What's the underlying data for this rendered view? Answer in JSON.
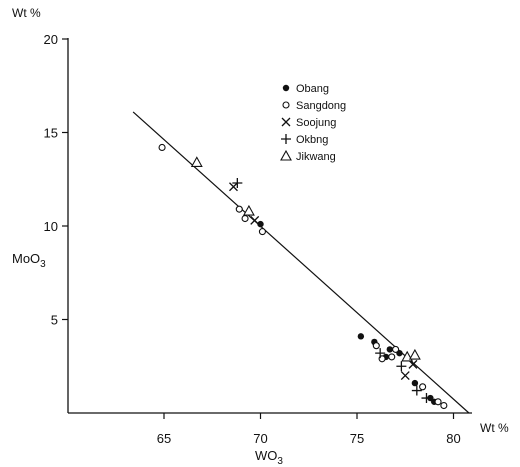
{
  "chart_data": {
    "type": "scatter",
    "title": "",
    "xlabel": "WO₃",
    "ylabel": "MoO₃",
    "x_unit": "Wt %",
    "y_unit": "Wt %",
    "xlim": [
      60,
      81.5
    ],
    "ylim": [
      0,
      20
    ],
    "x_ticks": [
      65,
      70,
      75,
      80
    ],
    "y_ticks": [
      5,
      10,
      15,
      20
    ],
    "y_tick_labels": [
      "5",
      "10",
      "15",
      "20"
    ],
    "legend_position": "top-center",
    "trend_line": {
      "from": [
        63.4,
        16.1
      ],
      "to": [
        80.8,
        0
      ]
    },
    "series": [
      {
        "name": "Obang",
        "marker": "filled-circle",
        "points": [
          [
            70.0,
            10.1
          ],
          [
            75.2,
            4.1
          ],
          [
            75.9,
            3.8
          ],
          [
            76.5,
            3.0
          ],
          [
            76.7,
            3.4
          ],
          [
            77.2,
            3.2
          ],
          [
            78.0,
            1.6
          ],
          [
            78.8,
            0.8
          ],
          [
            79.0,
            0.6
          ]
        ]
      },
      {
        "name": "Sangdong",
        "marker": "open-circle",
        "points": [
          [
            64.9,
            14.2
          ],
          [
            68.9,
            10.9
          ],
          [
            69.2,
            10.4
          ],
          [
            70.1,
            9.7
          ],
          [
            76.0,
            3.6
          ],
          [
            76.3,
            2.9
          ],
          [
            76.8,
            3.0
          ],
          [
            77.0,
            3.4
          ],
          [
            78.4,
            1.4
          ],
          [
            79.2,
            0.6
          ],
          [
            79.5,
            0.4
          ]
        ]
      },
      {
        "name": "Soojung",
        "marker": "x",
        "points": [
          [
            68.6,
            12.1
          ],
          [
            69.7,
            10.3
          ],
          [
            77.5,
            2.0
          ],
          [
            77.9,
            2.6
          ]
        ]
      },
      {
        "name": "Okbng",
        "marker": "plus",
        "points": [
          [
            68.8,
            12.3
          ],
          [
            76.2,
            3.2
          ],
          [
            77.3,
            2.5
          ],
          [
            78.1,
            1.2
          ],
          [
            78.6,
            0.8
          ]
        ]
      },
      {
        "name": "Jikwang",
        "marker": "triangle",
        "points": [
          [
            66.7,
            13.4
          ],
          [
            69.4,
            10.8
          ],
          [
            77.6,
            3.0
          ],
          [
            78.0,
            3.1
          ]
        ]
      }
    ]
  }
}
